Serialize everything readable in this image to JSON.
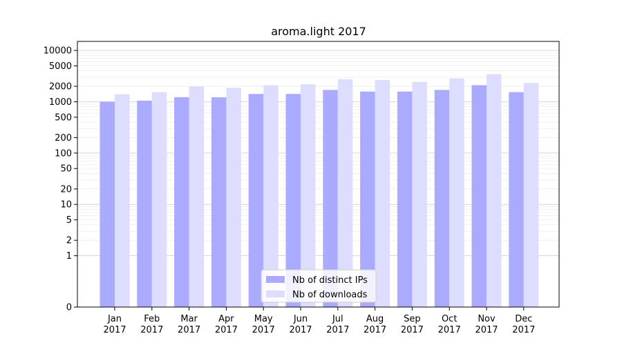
{
  "chart_data": {
    "type": "bar",
    "title": "aroma.light 2017",
    "xlabel": "",
    "ylabel": "",
    "y_scale": "symlog",
    "ylim": [
      0,
      15000
    ],
    "yticks": [
      0,
      1,
      2,
      5,
      10,
      20,
      50,
      100,
      200,
      500,
      1000,
      2000,
      5000,
      10000
    ],
    "categories": [
      {
        "month": "Jan",
        "year": "2017"
      },
      {
        "month": "Feb",
        "year": "2017"
      },
      {
        "month": "Mar",
        "year": "2017"
      },
      {
        "month": "Apr",
        "year": "2017"
      },
      {
        "month": "May",
        "year": "2017"
      },
      {
        "month": "Jun",
        "year": "2017"
      },
      {
        "month": "Jul",
        "year": "2017"
      },
      {
        "month": "Aug",
        "year": "2017"
      },
      {
        "month": "Sep",
        "year": "2017"
      },
      {
        "month": "Oct",
        "year": "2017"
      },
      {
        "month": "Nov",
        "year": "2017"
      },
      {
        "month": "Dec",
        "year": "2017"
      }
    ],
    "series": [
      {
        "name": "Nb of distinct IPs",
        "color": "#aaaaff",
        "values": [
          1000,
          1050,
          1230,
          1220,
          1420,
          1420,
          1700,
          1580,
          1580,
          1700,
          2100,
          1540
        ]
      },
      {
        "name": "Nb of downloads",
        "color": "#ddddff",
        "values": [
          1400,
          1540,
          2000,
          1870,
          2100,
          2200,
          2750,
          2650,
          2430,
          2850,
          3450,
          2320
        ]
      }
    ],
    "grid": true,
    "legend_position": "bottom-center"
  }
}
